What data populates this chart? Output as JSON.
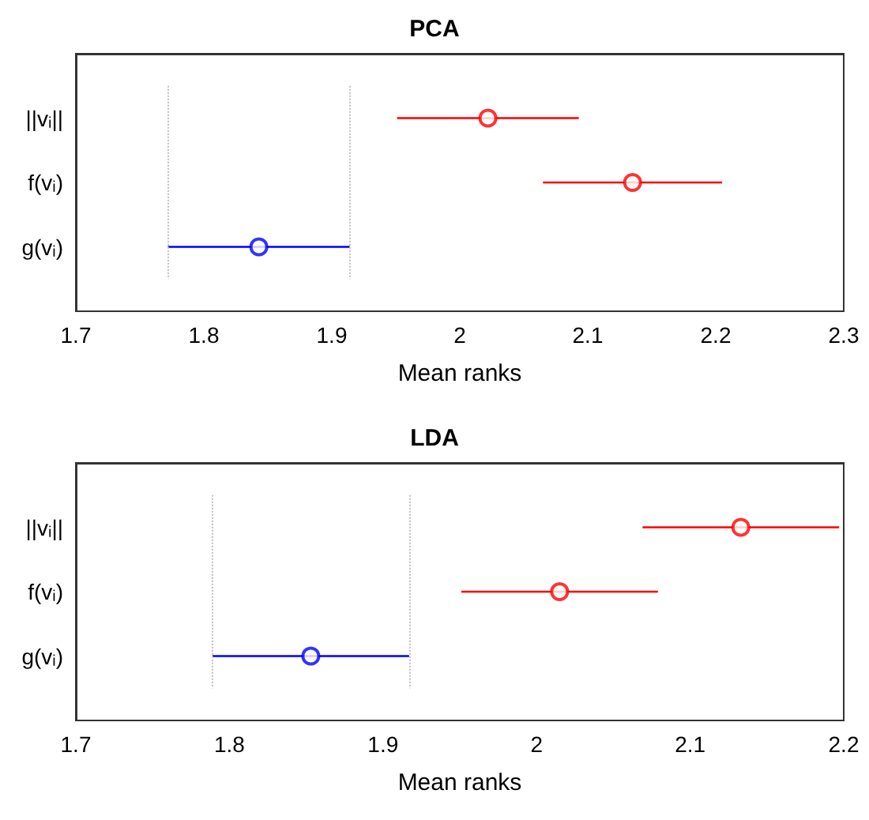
{
  "chart_data": [
    {
      "type": "scatter",
      "title": "PCA",
      "xlabel": "Mean ranks",
      "categories": [
        "||vᵢ||",
        "f(vᵢ)",
        "g(vᵢ)"
      ],
      "orientation": "horizontal",
      "marker": "circle",
      "grid": false,
      "values": [
        2.022,
        2.135,
        1.843
      ],
      "errors": [
        0.071,
        0.07,
        0.071
      ],
      "colors": [
        "#ff0000",
        "#ff0000",
        "#0000ff"
      ],
      "xlim": [
        1.7,
        2.3
      ],
      "xticks": [
        1.7,
        1.8,
        1.9,
        2,
        2.1,
        2.2,
        2.3
      ],
      "ref_lines": [
        {
          "axis": "x",
          "value": 1.772,
          "color": "#c0c0c0",
          "line_style": "dotted"
        },
        {
          "axis": "x",
          "value": 1.914,
          "color": "#c0c0c0",
          "line_style": "dotted"
        }
      ]
    },
    {
      "type": "scatter",
      "title": "LDA",
      "xlabel": "Mean ranks",
      "categories": [
        "||vᵢ||",
        "f(vᵢ)",
        "g(vᵢ)"
      ],
      "orientation": "horizontal",
      "marker": "circle",
      "grid": false,
      "values": [
        2.133,
        2.015,
        1.853
      ],
      "errors": [
        0.064,
        0.064,
        0.064
      ],
      "colors": [
        "#ff0000",
        "#ff0000",
        "#0000ff"
      ],
      "xlim": [
        1.7,
        2.2
      ],
      "xticks": [
        1.7,
        1.8,
        1.9,
        2,
        2.1,
        2.2
      ],
      "ref_lines": [
        {
          "axis": "x",
          "value": 1.789,
          "color": "#c0c0c0",
          "line_style": "dotted"
        },
        {
          "axis": "x",
          "value": 1.917,
          "color": "#c0c0c0",
          "line_style": "dotted"
        }
      ]
    }
  ]
}
